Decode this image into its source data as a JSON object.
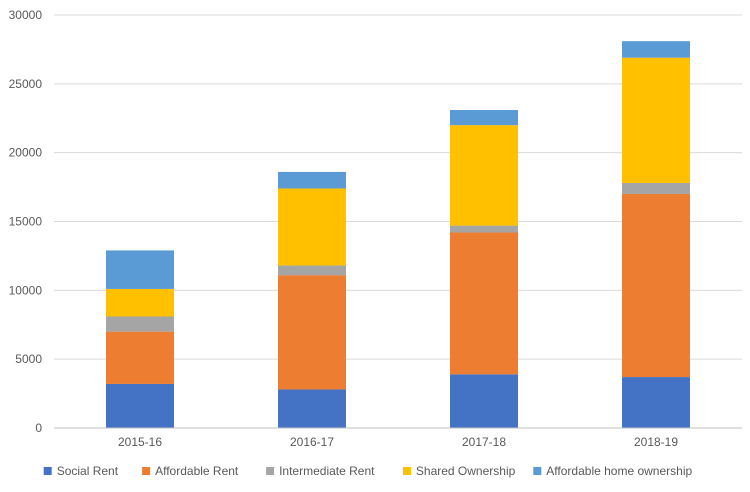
{
  "chart_data": {
    "type": "bar",
    "stacked": true,
    "title": "",
    "xlabel": "",
    "ylabel": "",
    "ylim": [
      0,
      30000
    ],
    "y_ticks": [
      0,
      5000,
      10000,
      15000,
      20000,
      25000,
      30000
    ],
    "y_tick_labels": [
      "0",
      "5000",
      "10000",
      "15000",
      "20000",
      "25000",
      "30000"
    ],
    "grid": true,
    "legend_position": "bottom",
    "categories": [
      "2015-16",
      "2016-17",
      "2017-18",
      "2018-19"
    ],
    "series": [
      {
        "name": "Social Rent",
        "color": "#4472c4",
        "values": [
          3200,
          2800,
          3900,
          3700
        ]
      },
      {
        "name": "Affordable Rent",
        "color": "#ed7d31",
        "values": [
          3800,
          8300,
          10300,
          13300
        ]
      },
      {
        "name": "Intermediate Rent",
        "color": "#a5a5a5",
        "values": [
          1100,
          700,
          500,
          800
        ]
      },
      {
        "name": "Shared Ownership",
        "color": "#ffc000",
        "values": [
          2000,
          5600,
          7300,
          9100
        ]
      },
      {
        "name": "Affordable home ownership",
        "color": "#5b9bd5",
        "values": [
          2800,
          1200,
          1100,
          1200
        ]
      }
    ]
  }
}
